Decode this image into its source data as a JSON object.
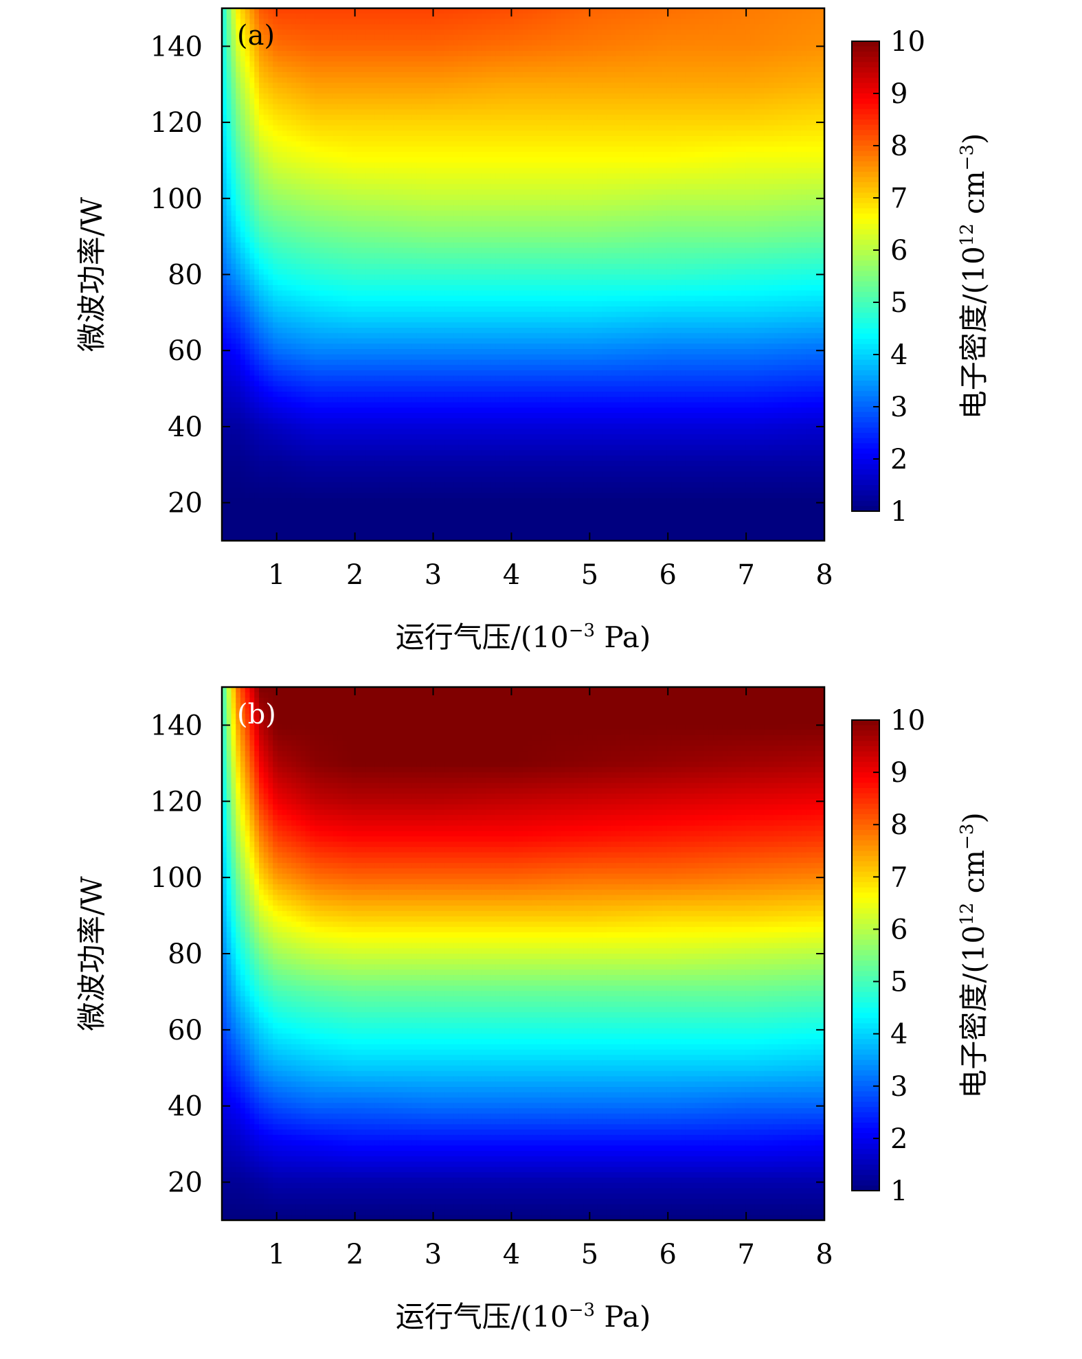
{
  "chart_data": [
    {
      "type": "heatmap",
      "panel_label": "(a)",
      "panel_label_color": "#000000",
      "xlabel": "运行气压/(10⁻³ Pa)",
      "xlabel_parts": {
        "main": "运行气压/(10",
        "sup": "−3",
        "tail": " Pa)"
      },
      "ylabel": "微波功率/W",
      "colorbar_label": "电子密度/(10¹² cm⁻³)",
      "colorbar_label_parts": {
        "main": "电子密度/(10",
        "sup": "12",
        "mid": " cm",
        "sup2": "−3",
        "tail": ")"
      },
      "x_ticks": [
        "1",
        "2",
        "3",
        "4",
        "5",
        "6",
        "7",
        "8"
      ],
      "y_ticks": [
        "20",
        "40",
        "60",
        "80",
        "100",
        "120",
        "140"
      ],
      "colorbar_ticks": [
        "1",
        "2",
        "3",
        "4",
        "5",
        "6",
        "7",
        "8",
        "9",
        "10"
      ],
      "xlim": [
        0.3,
        8
      ],
      "ylim": [
        10,
        150
      ],
      "zlim": [
        1,
        10
      ],
      "colormap": "jet",
      "x": [
        0.3,
        0.5,
        0.8,
        1.0,
        1.5,
        2.0,
        3.0,
        4.0,
        5.0,
        6.0,
        7.0,
        8.0
      ],
      "y": [
        10,
        20,
        30,
        40,
        50,
        60,
        70,
        80,
        90,
        100,
        110,
        120,
        130,
        140,
        150
      ],
      "z": [
        [
          1.0,
          1.0,
          1.0,
          1.0,
          1.0,
          1.0,
          1.0,
          1.0,
          1.0,
          1.0,
          1.0,
          1.0
        ],
        [
          1.0,
          1.0,
          1.0,
          1.0,
          1.0,
          1.0,
          1.0,
          1.0,
          1.0,
          1.0,
          1.0,
          1.0
        ],
        [
          1.1,
          1.1,
          1.2,
          1.2,
          1.3,
          1.3,
          1.3,
          1.3,
          1.3,
          1.3,
          1.3,
          1.3
        ],
        [
          1.3,
          1.3,
          1.5,
          1.6,
          1.8,
          1.8,
          1.8,
          1.8,
          1.8,
          1.8,
          1.8,
          1.7
        ],
        [
          1.6,
          1.7,
          2.1,
          2.3,
          2.5,
          2.5,
          2.5,
          2.5,
          2.5,
          2.5,
          2.5,
          2.4
        ],
        [
          2.0,
          2.2,
          2.8,
          3.1,
          3.3,
          3.3,
          3.3,
          3.3,
          3.3,
          3.2,
          3.2,
          3.1
        ],
        [
          2.5,
          2.8,
          3.5,
          3.8,
          4.0,
          4.1,
          4.1,
          4.1,
          4.1,
          4.0,
          4.0,
          3.9
        ],
        [
          3.0,
          3.5,
          4.2,
          4.5,
          4.7,
          4.8,
          4.8,
          4.8,
          4.8,
          4.8,
          4.7,
          4.6
        ],
        [
          3.4,
          4.1,
          4.9,
          5.1,
          5.3,
          5.4,
          5.5,
          5.5,
          5.5,
          5.4,
          5.4,
          5.3
        ],
        [
          3.7,
          4.6,
          5.5,
          5.7,
          5.9,
          6.0,
          6.1,
          6.1,
          6.1,
          6.0,
          6.0,
          5.9
        ],
        [
          3.9,
          5.0,
          6.0,
          6.3,
          6.5,
          6.6,
          6.6,
          6.6,
          6.6,
          6.6,
          6.5,
          6.5
        ],
        [
          4.1,
          5.4,
          6.6,
          6.8,
          7.0,
          7.0,
          7.0,
          7.0,
          7.0,
          7.0,
          7.0,
          6.9
        ],
        [
          4.3,
          5.8,
          7.1,
          7.3,
          7.5,
          7.5,
          7.5,
          7.4,
          7.4,
          7.4,
          7.4,
          7.3
        ],
        [
          4.4,
          6.3,
          7.6,
          7.9,
          8.0,
          8.0,
          8.0,
          7.9,
          7.8,
          7.7,
          7.7,
          7.6
        ],
        [
          4.5,
          6.8,
          8.1,
          8.3,
          8.3,
          8.3,
          8.3,
          8.2,
          8.0,
          7.9,
          7.8,
          7.7
        ]
      ]
    },
    {
      "type": "heatmap",
      "panel_label": "(b)",
      "panel_label_color": "#ffffff",
      "xlabel": "运行气压/(10⁻³ Pa)",
      "xlabel_parts": {
        "main": "运行气压/(10",
        "sup": "−3",
        "tail": " Pa)"
      },
      "ylabel": "微波功率/W",
      "colorbar_label": "电子密度/(10¹² cm⁻³)",
      "colorbar_label_parts": {
        "main": "电子密度/(10",
        "sup": "12",
        "mid": " cm",
        "sup2": "−3",
        "tail": ")"
      },
      "x_ticks": [
        "1",
        "2",
        "3",
        "4",
        "5",
        "6",
        "7",
        "8"
      ],
      "y_ticks": [
        "20",
        "40",
        "60",
        "80",
        "100",
        "120",
        "140"
      ],
      "colorbar_ticks": [
        "1",
        "2",
        "3",
        "4",
        "5",
        "6",
        "7",
        "8",
        "9",
        "10"
      ],
      "xlim": [
        0.3,
        8
      ],
      "ylim": [
        10,
        150
      ],
      "zlim": [
        1,
        10
      ],
      "colormap": "jet",
      "x": [
        0.3,
        0.5,
        0.8,
        1.0,
        1.5,
        2.0,
        3.0,
        4.0,
        5.0,
        6.0,
        7.0,
        8.0
      ],
      "y": [
        10,
        20,
        30,
        40,
        50,
        60,
        70,
        80,
        90,
        100,
        110,
        120,
        130,
        140,
        150
      ],
      "z": [
        [
          1.0,
          1.0,
          1.0,
          1.0,
          1.0,
          1.0,
          1.0,
          1.0,
          1.0,
          1.0,
          1.0,
          1.0
        ],
        [
          1.2,
          1.2,
          1.3,
          1.4,
          1.4,
          1.4,
          1.4,
          1.4,
          1.4,
          1.4,
          1.4,
          1.4
        ],
        [
          1.5,
          1.6,
          1.9,
          2.0,
          2.1,
          2.2,
          2.2,
          2.2,
          2.2,
          2.2,
          2.2,
          2.1
        ],
        [
          1.9,
          2.1,
          2.6,
          2.8,
          3.0,
          3.0,
          3.1,
          3.1,
          3.1,
          3.1,
          3.0,
          3.0
        ],
        [
          2.3,
          2.7,
          3.4,
          3.6,
          3.8,
          3.9,
          3.9,
          3.9,
          3.9,
          3.9,
          3.9,
          3.8
        ],
        [
          2.7,
          3.3,
          4.0,
          4.3,
          4.5,
          4.6,
          4.6,
          4.6,
          4.6,
          4.6,
          4.6,
          4.5
        ],
        [
          3.0,
          3.9,
          4.7,
          5.0,
          5.2,
          5.3,
          5.3,
          5.3,
          5.3,
          5.3,
          5.3,
          5.2
        ],
        [
          3.3,
          4.4,
          5.4,
          5.8,
          6.1,
          6.2,
          6.2,
          6.2,
          6.2,
          6.2,
          6.1,
          6.0
        ],
        [
          3.6,
          4.9,
          6.2,
          6.6,
          7.0,
          7.1,
          7.1,
          7.1,
          7.1,
          7.0,
          7.0,
          6.9
        ],
        [
          3.8,
          5.4,
          7.0,
          7.5,
          7.9,
          8.0,
          8.0,
          8.0,
          7.9,
          7.9,
          7.8,
          7.7
        ],
        [
          4.0,
          5.9,
          7.7,
          8.3,
          8.7,
          8.8,
          8.8,
          8.8,
          8.7,
          8.6,
          8.5,
          8.4
        ],
        [
          4.2,
          6.4,
          8.4,
          9.0,
          9.4,
          9.5,
          9.5,
          9.4,
          9.3,
          9.2,
          9.1,
          9.0
        ],
        [
          4.4,
          6.9,
          9.0,
          9.6,
          9.9,
          10.0,
          10.0,
          10.0,
          9.9,
          9.8,
          9.7,
          9.6
        ],
        [
          4.6,
          7.4,
          9.5,
          10.0,
          10.0,
          10.0,
          10.0,
          10.0,
          10.0,
          10.0,
          10.0,
          10.0
        ],
        [
          4.8,
          7.9,
          10.0,
          10.0,
          10.0,
          10.0,
          10.0,
          10.0,
          10.0,
          10.0,
          10.0,
          10.0
        ]
      ]
    }
  ]
}
